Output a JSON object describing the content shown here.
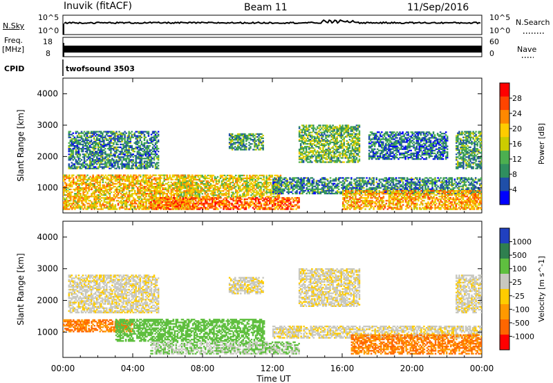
{
  "header": {
    "station": "Inuvik (fitACF)",
    "beam": "Beam 11",
    "date": "11/Sep/2016"
  },
  "sky_panel": {
    "label_left": "N.Sky",
    "label_right": "N.Search",
    "left_ticks": [
      "10^5",
      "10^0"
    ],
    "right_ticks": [
      "10^5",
      "10^0"
    ]
  },
  "freq_panel": {
    "label_left_line1": "Freq.",
    "label_left_line2": "[MHz]",
    "label_right": "Nave",
    "left_ticks": [
      "18",
      "8"
    ],
    "right_ticks": [
      "60",
      "0"
    ]
  },
  "cpid_panel": {
    "label": "CPID",
    "value": "twofsound 3503"
  },
  "colors": {
    "power_scale": [
      "#0000ff",
      "#1f4fa8",
      "#2f8f5f",
      "#4caf50",
      "#cccc00",
      "#ffcc00",
      "#ff8800",
      "#ff4400",
      "#ff0000"
    ],
    "velocity_scale": [
      "#2040c0",
      "#2f7f4f",
      "#5fbf3f",
      "#c8c8c0",
      "#ffcc00",
      "#ff9900",
      "#ff6600",
      "#ff0000"
    ]
  },
  "chart_data": [
    {
      "type": "heatmap",
      "title": "",
      "xlabel": "",
      "ylabel": "Slant Range [km]",
      "colorbar_label": "Power [dB]",
      "colorbar_ticks": [
        "28",
        "24",
        "20",
        "16",
        "12",
        "8",
        "4"
      ],
      "x_ticks": [
        "00:00",
        "04:00",
        "08:00",
        "12:00",
        "16:00",
        "20:00",
        "00:00"
      ],
      "y_ticks": [
        "4000",
        "3000",
        "2000",
        "1000"
      ],
      "ylim": [
        200,
        4500
      ],
      "xlim": [
        "00:00",
        "24:00"
      ],
      "regions": [
        {
          "t0": 0.0,
          "t1": 7.5,
          "r0": 300,
          "r1": 1400,
          "level": 22
        },
        {
          "t0": 0.3,
          "t1": 5.5,
          "r0": 1600,
          "r1": 2800,
          "level": 10
        },
        {
          "t0": 5.0,
          "t1": 13.5,
          "r0": 300,
          "r1": 700,
          "level": 28
        },
        {
          "t0": 6.5,
          "t1": 12.5,
          "r0": 700,
          "r1": 1400,
          "level": 20
        },
        {
          "t0": 9.5,
          "t1": 11.5,
          "r0": 2200,
          "r1": 2700,
          "level": 12
        },
        {
          "t0": 13.5,
          "t1": 17.0,
          "r0": 1800,
          "r1": 3000,
          "level": 14
        },
        {
          "t0": 12.0,
          "t1": 24.0,
          "r0": 800,
          "r1": 1300,
          "level": 10
        },
        {
          "t0": 16.0,
          "t1": 24.0,
          "r0": 300,
          "r1": 900,
          "level": 24
        },
        {
          "t0": 17.5,
          "t1": 22.0,
          "r0": 1900,
          "r1": 2800,
          "level": 8
        },
        {
          "t0": 22.5,
          "t1": 24.0,
          "r0": 1600,
          "r1": 2800,
          "level": 12
        }
      ]
    },
    {
      "type": "heatmap",
      "title": "",
      "xlabel": "Time UT",
      "ylabel": "Slant Range [km]",
      "colorbar_label": "Velocity [m s^-1]",
      "colorbar_ticks": [
        "1000",
        "500",
        "100",
        "25",
        "-25",
        "-100",
        "-500",
        "-1000"
      ],
      "x_ticks": [
        "00:00",
        "04:00",
        "08:00",
        "12:00",
        "16:00",
        "20:00",
        "00:00"
      ],
      "y_ticks": [
        "4000",
        "3000",
        "2000",
        "1000"
      ],
      "ylim": [
        200,
        4500
      ],
      "xlim": [
        "00:00",
        "24:00"
      ],
      "regions": [
        {
          "t0": 0.0,
          "t1": 4.0,
          "r0": 1000,
          "r1": 1400,
          "level": -300
        },
        {
          "t0": 0.3,
          "t1": 5.5,
          "r0": 1600,
          "r1": 2800,
          "level": 0
        },
        {
          "t0": 3.0,
          "t1": 11.5,
          "r0": 700,
          "r1": 1400,
          "level": 150
        },
        {
          "t0": 5.0,
          "t1": 13.5,
          "r0": 300,
          "r1": 700,
          "level": 60
        },
        {
          "t0": 9.5,
          "t1": 11.5,
          "r0": 2200,
          "r1": 2700,
          "level": 0
        },
        {
          "t0": 13.5,
          "t1": 17.0,
          "r0": 1800,
          "r1": 3000,
          "level": 0
        },
        {
          "t0": 12.0,
          "t1": 24.0,
          "r0": 800,
          "r1": 1200,
          "level": 0
        },
        {
          "t0": 16.5,
          "t1": 24.0,
          "r0": 300,
          "r1": 900,
          "level": -300
        },
        {
          "t0": 22.5,
          "t1": 24.0,
          "r0": 1600,
          "r1": 2800,
          "level": 0
        }
      ]
    }
  ]
}
